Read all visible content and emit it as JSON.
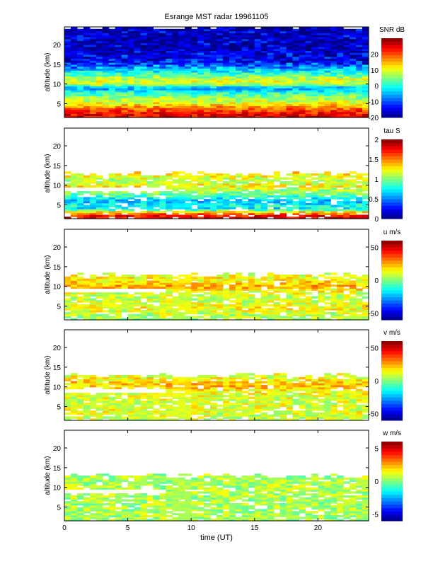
{
  "chart_data": {
    "type": "heatmap",
    "title": "Esrange MST radar 19961105",
    "xlabel": "time (UT)",
    "xlim": [
      0,
      24
    ],
    "xticks": [
      0,
      5,
      10,
      15,
      20
    ],
    "ylim": [
      1.5,
      24.5
    ],
    "data_gap_ut": [
      8.5,
      10
    ],
    "panels": [
      {
        "ylabel": "altitude (km)",
        "colorbar_label": "SNR dB",
        "clim": [
          -20,
          30
        ],
        "cticks": [
          -20,
          -10,
          0,
          10,
          20
        ],
        "yticks": [
          5,
          10,
          15,
          20
        ],
        "profile_alt_km": [
          2,
          3,
          4,
          5,
          6,
          7,
          8,
          9,
          10,
          11,
          12,
          13,
          14,
          15,
          16,
          18,
          20,
          24
        ],
        "profile_values": [
          25,
          22,
          18,
          12,
          8,
          5,
          0,
          -6,
          8,
          10,
          5,
          0,
          -5,
          -10,
          -14,
          -16,
          -17,
          -17
        ],
        "data_top_km": 24.5
      },
      {
        "ylabel": "altitude (km)",
        "colorbar_label": "tau S",
        "clim": [
          0,
          2
        ],
        "cticks": [
          "0",
          "0.5",
          "1",
          "1.5",
          "2"
        ],
        "yticks": [
          5,
          10,
          15,
          20
        ],
        "profile_alt_km": [
          2,
          3,
          4,
          5,
          6,
          7,
          8,
          9,
          10,
          11,
          12,
          13
        ],
        "profile_values": [
          1.8,
          1.5,
          0.7,
          0.8,
          0.6,
          0.8,
          1.0,
          1.1,
          1.3,
          1.1,
          1.2,
          1.3
        ],
        "data_top_km": 13
      },
      {
        "ylabel": "altitude (km)",
        "colorbar_label": "u m/s",
        "clim": [
          -60,
          60
        ],
        "cticks": [
          -50,
          0,
          50
        ],
        "yticks": [
          5,
          10,
          15,
          20
        ],
        "profile_alt_km": [
          2,
          3,
          4,
          5,
          6,
          7,
          8,
          9,
          10,
          11,
          12,
          13
        ],
        "profile_values": [
          5,
          8,
          12,
          15,
          10,
          8,
          10,
          15,
          25,
          20,
          15,
          12
        ],
        "data_top_km": 13
      },
      {
        "ylabel": "altitude (km)",
        "colorbar_label": "v m/s",
        "clim": [
          -60,
          60
        ],
        "cticks": [
          -50,
          0,
          50
        ],
        "yticks": [
          5,
          10,
          15,
          20
        ],
        "profile_alt_km": [
          2,
          3,
          4,
          5,
          6,
          7,
          8,
          9,
          10,
          11,
          12,
          13
        ],
        "profile_values": [
          8,
          10,
          12,
          12,
          10,
          10,
          12,
          15,
          22,
          20,
          15,
          12
        ],
        "data_top_km": 13
      },
      {
        "ylabel": "altitude (km)",
        "colorbar_label": "w m/s",
        "clim": [
          -6,
          6
        ],
        "cticks": [
          -5,
          0,
          5
        ],
        "yticks": [
          5,
          10,
          15,
          20
        ],
        "profile_alt_km": [
          2,
          5,
          8,
          10,
          13
        ],
        "profile_values": [
          0.5,
          0.5,
          0.5,
          0.6,
          0.5
        ],
        "data_top_km": 13
      }
    ]
  }
}
